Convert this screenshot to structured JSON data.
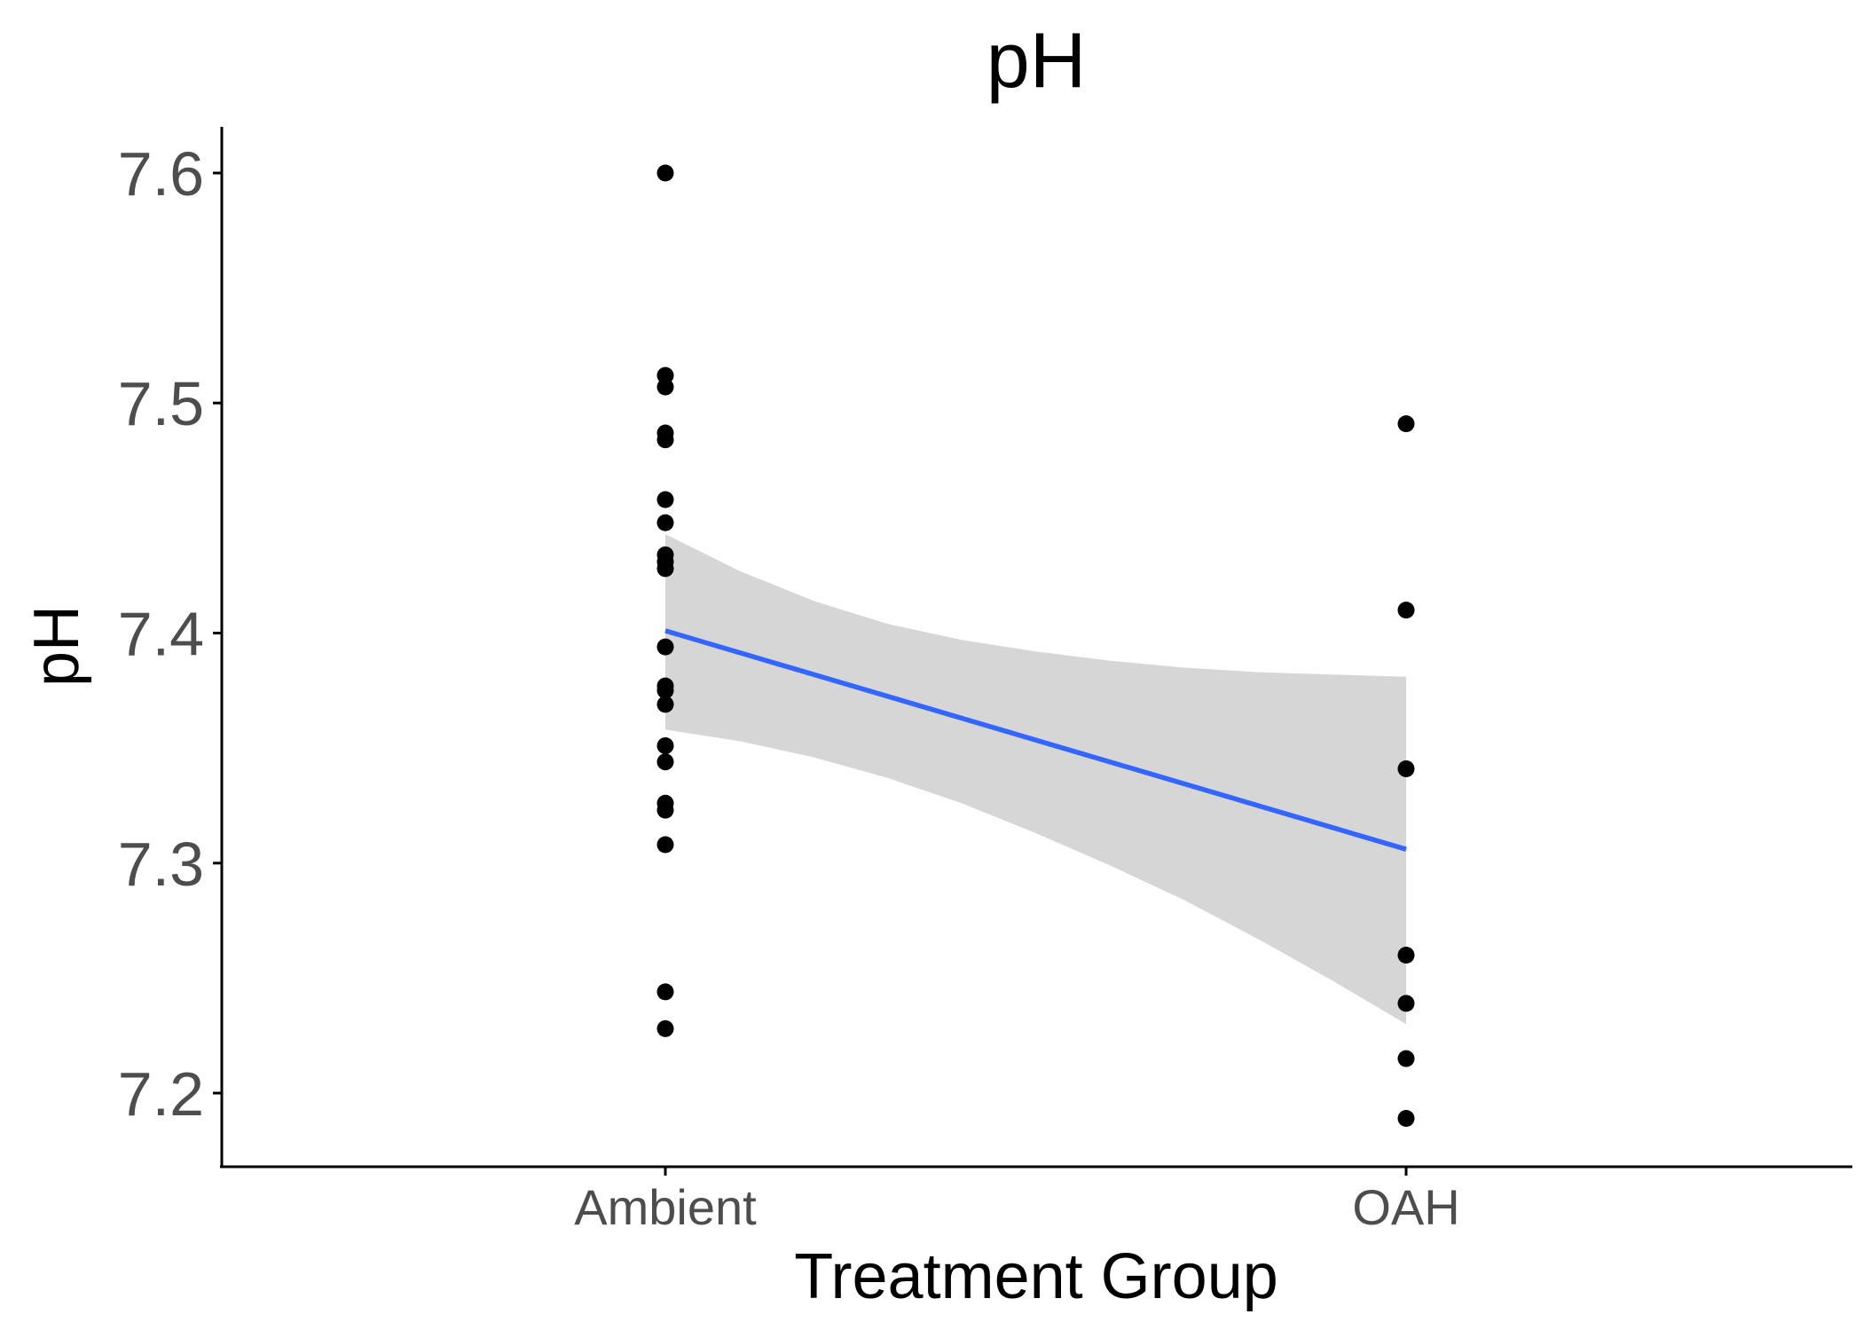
{
  "chart_data": {
    "type": "scatter",
    "title": "pH",
    "xlabel": "Treatment Group",
    "ylabel": "pH",
    "categories": [
      "Ambient",
      "OAH"
    ],
    "ylim": [
      7.17,
      7.62
    ],
    "yticks": [
      7.2,
      7.3,
      7.4,
      7.5,
      7.6
    ],
    "ytick_labels": [
      "7.2",
      "7.3",
      "7.4",
      "7.5",
      "7.6"
    ],
    "grid": false,
    "points": [
      {
        "x": "Ambient",
        "y": 7.6
      },
      {
        "x": "Ambient",
        "y": 7.512
      },
      {
        "x": "Ambient",
        "y": 7.507
      },
      {
        "x": "Ambient",
        "y": 7.487
      },
      {
        "x": "Ambient",
        "y": 7.484
      },
      {
        "x": "Ambient",
        "y": 7.458
      },
      {
        "x": "Ambient",
        "y": 7.448
      },
      {
        "x": "Ambient",
        "y": 7.434
      },
      {
        "x": "Ambient",
        "y": 7.431
      },
      {
        "x": "Ambient",
        "y": 7.428
      },
      {
        "x": "Ambient",
        "y": 7.394
      },
      {
        "x": "Ambient",
        "y": 7.377
      },
      {
        "x": "Ambient",
        "y": 7.375
      },
      {
        "x": "Ambient",
        "y": 7.369
      },
      {
        "x": "Ambient",
        "y": 7.351
      },
      {
        "x": "Ambient",
        "y": 7.344
      },
      {
        "x": "Ambient",
        "y": 7.326
      },
      {
        "x": "Ambient",
        "y": 7.323
      },
      {
        "x": "Ambient",
        "y": 7.308
      },
      {
        "x": "Ambient",
        "y": 7.244
      },
      {
        "x": "Ambient",
        "y": 7.228
      },
      {
        "x": "OAH",
        "y": 7.491
      },
      {
        "x": "OAH",
        "y": 7.41
      },
      {
        "x": "OAH",
        "y": 7.341
      },
      {
        "x": "OAH",
        "y": 7.26
      },
      {
        "x": "OAH",
        "y": 7.239
      },
      {
        "x": "OAH",
        "y": 7.215
      },
      {
        "x": "OAH",
        "y": 7.189
      }
    ],
    "fit_line": {
      "method": "linear",
      "start": {
        "x": "Ambient",
        "y": 7.401
      },
      "end": {
        "x": "OAH",
        "y": 7.306
      },
      "color": "#3366ff"
    },
    "confidence_band": {
      "color": "#d6d6d6",
      "upper": [
        {
          "t": 0.0,
          "y": 7.443
        },
        {
          "t": 0.1,
          "y": 7.427
        },
        {
          "t": 0.2,
          "y": 7.414
        },
        {
          "t": 0.3,
          "y": 7.404
        },
        {
          "t": 0.4,
          "y": 7.397
        },
        {
          "t": 0.5,
          "y": 7.392
        },
        {
          "t": 0.6,
          "y": 7.388
        },
        {
          "t": 0.7,
          "y": 7.385
        },
        {
          "t": 0.8,
          "y": 7.383
        },
        {
          "t": 0.9,
          "y": 7.382
        },
        {
          "t": 1.0,
          "y": 7.381
        }
      ],
      "lower": [
        {
          "t": 0.0,
          "y": 7.358
        },
        {
          "t": 0.1,
          "y": 7.353
        },
        {
          "t": 0.2,
          "y": 7.346
        },
        {
          "t": 0.3,
          "y": 7.337
        },
        {
          "t": 0.4,
          "y": 7.326
        },
        {
          "t": 0.5,
          "y": 7.313
        },
        {
          "t": 0.6,
          "y": 7.299
        },
        {
          "t": 0.7,
          "y": 7.284
        },
        {
          "t": 0.8,
          "y": 7.267
        },
        {
          "t": 0.9,
          "y": 7.249
        },
        {
          "t": 1.0,
          "y": 7.23
        }
      ]
    },
    "point_color": "#000000",
    "axis_color": "#000000"
  }
}
